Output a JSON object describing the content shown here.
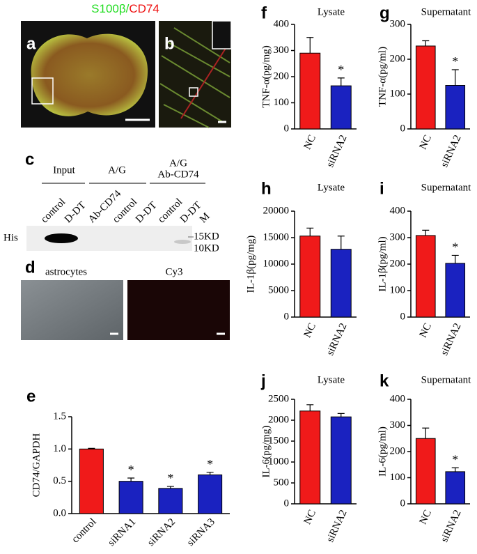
{
  "figure": {
    "a_label": "a",
    "stain_green": "S100β",
    "stain_slash": "/",
    "stain_red": "CD74",
    "b_label": "b",
    "c_label": "c",
    "c_groups": [
      "Input",
      "A/G",
      [
        "A/G",
        "Ab-CD74"
      ]
    ],
    "c_lanes": [
      "control",
      "D-DT",
      "Ab-CD74",
      "control",
      "D-DT",
      "control",
      "D-DT",
      "M"
    ],
    "c_row": "His",
    "c_markers": [
      "15KD",
      "10KD"
    ],
    "d_label": "d",
    "d_captions": [
      "astrocytes",
      "Cy3"
    ]
  },
  "chart_data": [
    {
      "type": "bar",
      "panel": "e",
      "ylabel": "CD74/GAPDH",
      "categories": [
        "control",
        "siRNA1",
        "siRNA2",
        "siRNA3"
      ],
      "values": [
        1.0,
        0.5,
        0.39,
        0.6
      ],
      "errors": [
        0.01,
        0.05,
        0.03,
        0.04
      ],
      "colors": [
        "#f01a1a",
        "#1a22c0",
        "#1a22c0",
        "#1a22c0"
      ],
      "significance": [
        null,
        "*",
        "*",
        "*"
      ],
      "ylim": [
        0,
        1.5
      ],
      "yticks": [
        {
          "value": 0,
          "label": "0.0"
        },
        0.5,
        {
          "value": 1,
          "label": "1.0"
        },
        1.5
      ]
    },
    {
      "type": "bar",
      "panel": "f",
      "title": "Lysate",
      "ylabel": "TNF-α(pg/mg)",
      "categories": [
        "NC",
        "siRNA2"
      ],
      "values": [
        290,
        165
      ],
      "errors": [
        60,
        30
      ],
      "colors": [
        "#f01a1a",
        "#1a22c0"
      ],
      "significance": [
        null,
        "*"
      ],
      "ylim": [
        0,
        400
      ],
      "yticks": [
        0,
        100,
        200,
        300,
        400
      ]
    },
    {
      "type": "bar",
      "panel": "g",
      "title": "Supernatant",
      "ylabel": "TNF-α(pg/ml)",
      "categories": [
        "NC",
        "siRNA2"
      ],
      "values": [
        238,
        125
      ],
      "errors": [
        15,
        45
      ],
      "colors": [
        "#f01a1a",
        "#1a22c0"
      ],
      "significance": [
        null,
        "*"
      ],
      "ylim": [
        0,
        300
      ],
      "yticks": [
        0,
        100,
        200,
        300
      ]
    },
    {
      "type": "bar",
      "panel": "h",
      "title": "Lysate",
      "ylabel": "IL-1β(pg/mg)",
      "categories": [
        "NC",
        "siRNA2"
      ],
      "values": [
        15300,
        12800
      ],
      "errors": [
        1500,
        2500
      ],
      "colors": [
        "#f01a1a",
        "#1a22c0"
      ],
      "significance": [
        null,
        null
      ],
      "ylim": [
        0,
        20000
      ],
      "yticks": [
        0,
        5000,
        10000,
        15000,
        20000
      ]
    },
    {
      "type": "bar",
      "panel": "i",
      "title": "Supernatant",
      "ylabel": "IL-1β(pg/ml)",
      "categories": [
        "NC",
        "siRNA2"
      ],
      "values": [
        308,
        203
      ],
      "errors": [
        20,
        30
      ],
      "colors": [
        "#f01a1a",
        "#1a22c0"
      ],
      "significance": [
        null,
        "*"
      ],
      "ylim": [
        0,
        400
      ],
      "yticks": [
        0,
        100,
        200,
        300,
        400
      ]
    },
    {
      "type": "bar",
      "panel": "j",
      "title": "Lysate",
      "ylabel": "IL-6(pg/mg)",
      "categories": [
        "NC",
        "siRNA2"
      ],
      "values": [
        2220,
        2080
      ],
      "errors": [
        150,
        80
      ],
      "colors": [
        "#f01a1a",
        "#1a22c0"
      ],
      "significance": [
        null,
        null
      ],
      "ylim": [
        0,
        2500
      ],
      "yticks": [
        0,
        500,
        1000,
        1500,
        2000,
        2500
      ]
    },
    {
      "type": "bar",
      "panel": "k",
      "title": "Supernatant",
      "ylabel": "IL-6(pg/ml)",
      "categories": [
        "NC",
        "siRNA2"
      ],
      "values": [
        250,
        123
      ],
      "errors": [
        40,
        15
      ],
      "colors": [
        "#f01a1a",
        "#1a22c0"
      ],
      "significance": [
        null,
        "*"
      ],
      "ylim": [
        0,
        400
      ],
      "yticks": [
        0,
        100,
        200,
        300,
        400
      ]
    }
  ]
}
